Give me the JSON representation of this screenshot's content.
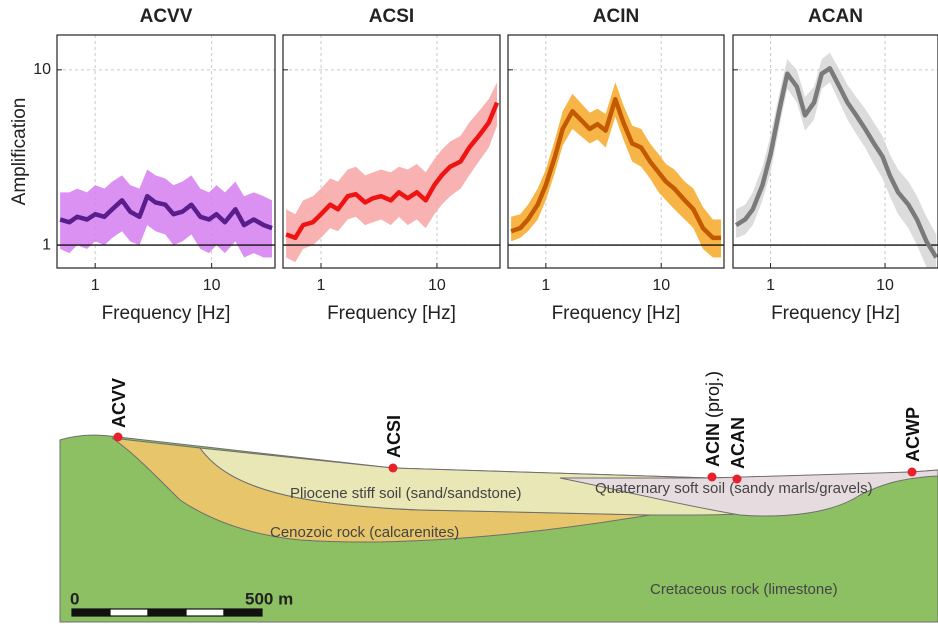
{
  "chart_data": [
    {
      "type": "line",
      "title": "ACVV",
      "xlabel": "Frequency [Hz]",
      "ylabel": "Amplification",
      "xscale": "log",
      "yscale": "log",
      "grid": true,
      "reference_line": 1,
      "xlim": [
        0.47,
        35
      ],
      "ylim": [
        0.74,
        15.8
      ],
      "xticks": [
        1,
        10
      ],
      "yticks": [
        1,
        10
      ],
      "x": [
        0.5,
        0.6,
        0.7,
        0.85,
        1,
        1.2,
        1.4,
        1.7,
        2,
        2.4,
        2.8,
        3.3,
        4,
        4.7,
        5.6,
        6.7,
        8,
        9.5,
        11,
        13,
        16,
        19,
        23,
        28,
        33
      ],
      "series": [
        {
          "color": "#5a1d8c",
          "values": [
            1.4,
            1.35,
            1.45,
            1.4,
            1.5,
            1.45,
            1.6,
            1.8,
            1.55,
            1.45,
            1.9,
            1.75,
            1.7,
            1.5,
            1.55,
            1.7,
            1.45,
            1.4,
            1.5,
            1.35,
            1.6,
            1.3,
            1.4,
            1.3,
            1.25
          ]
        }
      ],
      "band": {
        "color": "#d37ef0",
        "lower": [
          0.95,
          0.9,
          1.0,
          0.95,
          1.05,
          1.0,
          1.1,
          1.2,
          1.05,
          1.0,
          1.3,
          1.2,
          1.15,
          1.0,
          1.05,
          1.15,
          0.95,
          0.9,
          1.0,
          0.9,
          1.05,
          0.85,
          0.9,
          0.85,
          0.85
        ],
        "upper": [
          2.0,
          2.0,
          2.1,
          2.0,
          2.2,
          2.1,
          2.3,
          2.5,
          2.2,
          2.1,
          2.7,
          2.5,
          2.4,
          2.2,
          2.3,
          2.5,
          2.1,
          2.0,
          2.2,
          2.0,
          2.3,
          1.9,
          2.0,
          1.9,
          1.8
        ]
      }
    },
    {
      "type": "line",
      "title": "ACSI",
      "xlabel": "Frequency [Hz]",
      "xscale": "log",
      "yscale": "log",
      "grid": true,
      "reference_line": 1,
      "xlim": [
        0.47,
        35
      ],
      "ylim": [
        0.74,
        15.8
      ],
      "xticks": [
        1,
        10
      ],
      "yticks": [
        1,
        10
      ],
      "x": [
        0.5,
        0.6,
        0.7,
        0.85,
        1,
        1.2,
        1.4,
        1.7,
        2,
        2.4,
        2.8,
        3.3,
        4,
        4.7,
        5.6,
        6.7,
        8,
        9.5,
        11,
        13,
        16,
        19,
        23,
        28,
        33
      ],
      "series": [
        {
          "color": "#ee1414",
          "values": [
            1.15,
            1.1,
            1.3,
            1.35,
            1.5,
            1.7,
            1.6,
            1.9,
            1.95,
            1.75,
            1.85,
            1.9,
            1.8,
            2.0,
            1.85,
            2.0,
            1.8,
            2.2,
            2.5,
            2.8,
            3.0,
            3.6,
            4.2,
            5.0,
            6.5
          ]
        }
      ],
      "band": {
        "color": "#f7a4a4",
        "lower": [
          0.85,
          0.8,
          0.95,
          1.0,
          1.1,
          1.25,
          1.2,
          1.4,
          1.45,
          1.3,
          1.35,
          1.4,
          1.3,
          1.45,
          1.3,
          1.4,
          1.25,
          1.5,
          1.7,
          1.9,
          2.1,
          2.5,
          3.0,
          3.6,
          4.8
        ],
        "upper": [
          1.6,
          1.5,
          1.8,
          1.9,
          2.1,
          2.4,
          2.3,
          2.7,
          2.8,
          2.5,
          2.6,
          2.7,
          2.6,
          2.8,
          2.7,
          2.9,
          2.6,
          3.1,
          3.5,
          3.9,
          4.2,
          5.0,
          5.8,
          6.8,
          8.5
        ]
      }
    },
    {
      "type": "line",
      "title": "ACIN",
      "xlabel": "Frequency [Hz]",
      "xscale": "log",
      "yscale": "log",
      "grid": true,
      "reference_line": 1,
      "xlim": [
        0.47,
        35
      ],
      "ylim": [
        0.74,
        15.8
      ],
      "xticks": [
        1,
        10
      ],
      "yticks": [
        1,
        10
      ],
      "x": [
        0.5,
        0.6,
        0.7,
        0.85,
        1,
        1.2,
        1.4,
        1.7,
        2,
        2.4,
        2.8,
        3.3,
        4,
        4.7,
        5.6,
        6.7,
        8,
        9.5,
        11,
        13,
        16,
        19,
        23,
        28,
        33
      ],
      "series": [
        {
          "color": "#c45a00",
          "values": [
            1.2,
            1.25,
            1.4,
            1.7,
            2.2,
            3.2,
            4.6,
            5.8,
            5.2,
            4.6,
            4.9,
            4.5,
            6.8,
            5.0,
            3.8,
            3.6,
            3.0,
            2.6,
            2.3,
            2.1,
            1.8,
            1.6,
            1.25,
            1.1,
            1.1
          ]
        }
      ],
      "band": {
        "color": "#f6a828",
        "lower": [
          1.05,
          1.1,
          1.2,
          1.4,
          1.8,
          2.6,
          3.7,
          4.6,
          4.2,
          3.8,
          4.0,
          3.6,
          5.4,
          4.0,
          3.0,
          2.8,
          2.4,
          2.0,
          1.8,
          1.6,
          1.4,
          1.25,
          0.95,
          0.85,
          0.85
        ],
        "upper": [
          1.45,
          1.5,
          1.7,
          2.1,
          2.7,
          4.0,
          5.8,
          7.3,
          6.5,
          5.7,
          6.0,
          5.6,
          8.5,
          6.3,
          4.8,
          4.6,
          3.8,
          3.3,
          2.9,
          2.7,
          2.3,
          2.1,
          1.65,
          1.4,
          1.4
        ]
      }
    },
    {
      "type": "line",
      "title": "ACAN",
      "xlabel": "Frequency [Hz]",
      "xscale": "log",
      "yscale": "log",
      "grid": true,
      "reference_line": 1,
      "xlim": [
        0.47,
        29
      ],
      "ylim": [
        0.74,
        15.8
      ],
      "xticks": [
        1,
        10
      ],
      "yticks": [
        1,
        10
      ],
      "x": [
        0.5,
        0.6,
        0.7,
        0.85,
        1,
        1.2,
        1.4,
        1.7,
        2,
        2.4,
        2.8,
        3.3,
        4,
        4.7,
        5.6,
        6.7,
        8,
        9.5,
        11,
        13,
        16,
        19,
        23,
        28
      ],
      "series": [
        {
          "color": "#7a7a7a",
          "values": [
            1.3,
            1.4,
            1.6,
            2.2,
            3.3,
            6.0,
            9.5,
            8.0,
            5.5,
            6.5,
            9.5,
            10.2,
            8.0,
            6.5,
            5.5,
            4.6,
            3.8,
            3.2,
            2.5,
            2.0,
            1.7,
            1.4,
            1.05,
            0.85
          ]
        }
      ],
      "band": {
        "color": "#d6d6d6",
        "lower": [
          1.1,
          1.15,
          1.3,
          1.8,
          2.6,
          4.8,
          7.8,
          6.5,
          4.5,
          5.2,
          7.8,
          8.5,
          6.5,
          5.2,
          4.3,
          3.6,
          2.9,
          2.4,
          1.9,
          1.5,
          1.25,
          1.0,
          0.75,
          0.65
        ],
        "upper": [
          1.6,
          1.7,
          2.0,
          2.8,
          4.2,
          7.5,
          11.5,
          10,
          7,
          8,
          11.5,
          12.5,
          10,
          8.2,
          7,
          6,
          5,
          4.2,
          3.3,
          2.7,
          2.3,
          1.9,
          1.45,
          1.15
        ]
      }
    }
  ],
  "cross_section": {
    "stations": [
      {
        "label": "ACVV"
      },
      {
        "label": "ACSI"
      },
      {
        "label": "ACIN",
        "note": "(proj.)"
      },
      {
        "label": "ACAN"
      },
      {
        "label": "ACWP"
      }
    ],
    "layers": [
      "Pliocene stiff soil (sand/sandstone)",
      "Cenozoic rock (calcarenites)",
      "Quaternary soft soil (sandy marls/gravels)",
      "Cretaceous rock (limestone)"
    ],
    "scale_bar": {
      "start": "0",
      "end": "500 m"
    }
  }
}
